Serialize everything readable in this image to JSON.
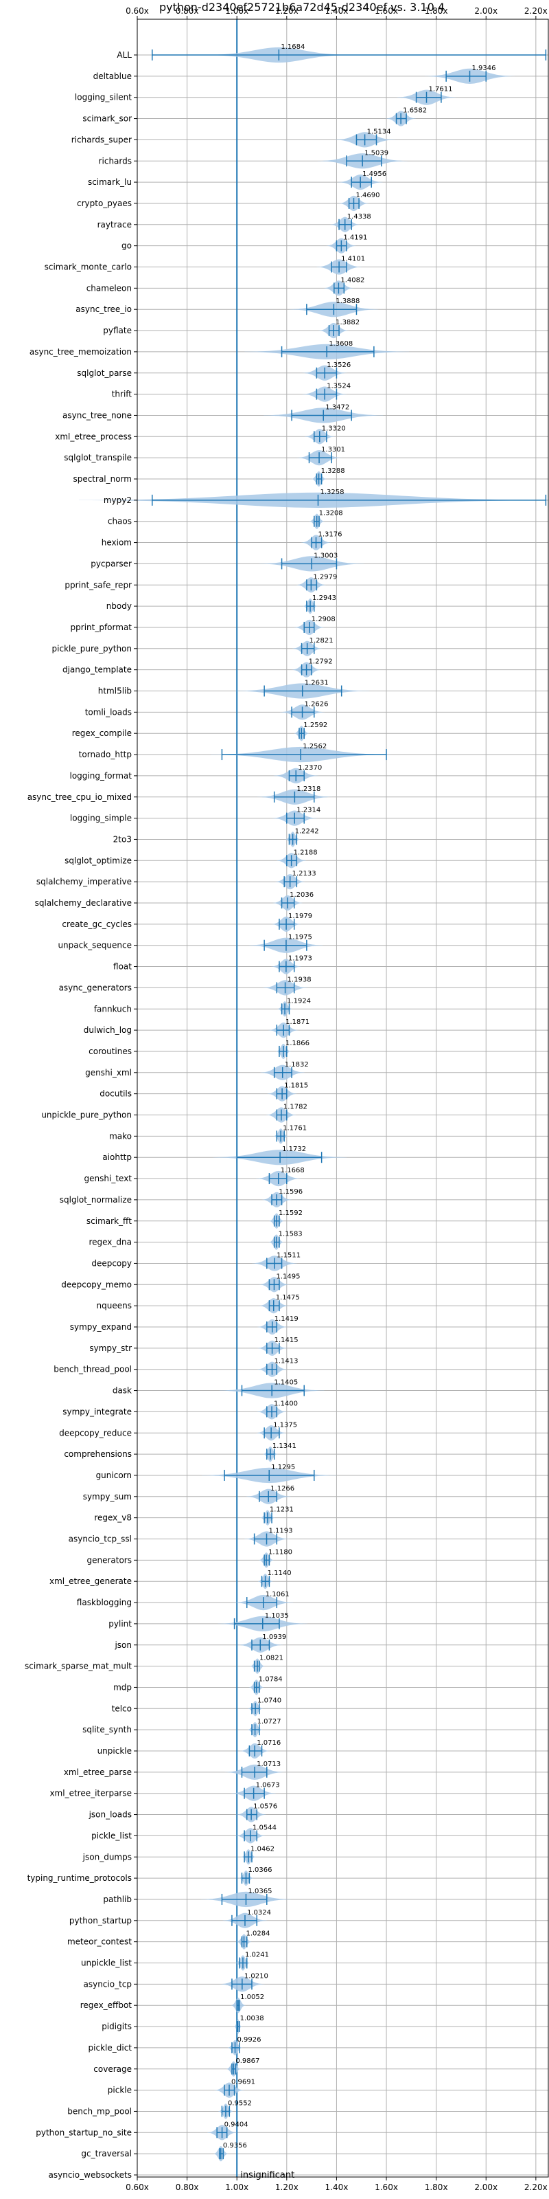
{
  "chart_data": {
    "type": "violin",
    "title": "python-d2340ef25721b6a72d45-d2340ef vs. 3.10.4",
    "xlabel": "",
    "ylabel": "",
    "xlim": [
      0.6,
      2.25
    ],
    "xticks": [
      "0.60x",
      "0.80x",
      "1.00x",
      "1.20x",
      "1.40x",
      "1.60x",
      "1.80x",
      "2.00x",
      "2.20x"
    ],
    "xtick_values": [
      0.6,
      0.8,
      1.0,
      1.2,
      1.4,
      1.6,
      1.8,
      2.0,
      2.2
    ],
    "grid": true,
    "reference_line": 1.0,
    "colors": {
      "violin": "#a7c8e6",
      "line": "#1f77b4",
      "grid": "#b0b0b0"
    },
    "annotation": "insignificant",
    "benchmarks": [
      {
        "name": "ALL",
        "value": 1.1684,
        "label": "1.1684",
        "lo": 0.66,
        "hi": 2.24,
        "spread": 0.1
      },
      {
        "name": "deltablue",
        "value": 1.9346,
        "label": "1.9346",
        "lo": 1.84,
        "hi": 2.0,
        "spread": 0.06
      },
      {
        "name": "logging_silent",
        "value": 1.7611,
        "label": "1.7611",
        "lo": 1.72,
        "hi": 1.82,
        "spread": 0.04
      },
      {
        "name": "scimark_sor",
        "value": 1.6582,
        "label": "1.6582",
        "lo": 1.64,
        "hi": 1.68,
        "spread": 0.02
      },
      {
        "name": "richards_super",
        "value": 1.5134,
        "label": "1.5134",
        "lo": 1.48,
        "hi": 1.56,
        "spread": 0.04
      },
      {
        "name": "richards",
        "value": 1.5039,
        "label": "1.5039",
        "lo": 1.44,
        "hi": 1.58,
        "spread": 0.06
      },
      {
        "name": "scimark_lu",
        "value": 1.4956,
        "label": "1.4956",
        "lo": 1.46,
        "hi": 1.54,
        "spread": 0.03
      },
      {
        "name": "crypto_pyaes",
        "value": 1.469,
        "label": "1.4690",
        "lo": 1.45,
        "hi": 1.49,
        "spread": 0.02
      },
      {
        "name": "raytrace",
        "value": 1.4338,
        "label": "1.4338",
        "lo": 1.41,
        "hi": 1.46,
        "spread": 0.02
      },
      {
        "name": "go",
        "value": 1.4191,
        "label": "1.4191",
        "lo": 1.4,
        "hi": 1.44,
        "spread": 0.02
      },
      {
        "name": "scimark_monte_carlo",
        "value": 1.4101,
        "label": "1.4101",
        "lo": 1.38,
        "hi": 1.44,
        "spread": 0.03
      },
      {
        "name": "chameleon",
        "value": 1.4082,
        "label": "1.4082",
        "lo": 1.39,
        "hi": 1.43,
        "spread": 0.02
      },
      {
        "name": "async_tree_io",
        "value": 1.3888,
        "label": "1.3888",
        "lo": 1.28,
        "hi": 1.48,
        "spread": 0.06
      },
      {
        "name": "pyflate",
        "value": 1.3882,
        "label": "1.3882",
        "lo": 1.37,
        "hi": 1.41,
        "spread": 0.02
      },
      {
        "name": "async_tree_memoization",
        "value": 1.3608,
        "label": "1.3608",
        "lo": 1.18,
        "hi": 1.55,
        "spread": 0.11
      },
      {
        "name": "sqlglot_parse",
        "value": 1.3526,
        "label": "1.3526",
        "lo": 1.32,
        "hi": 1.4,
        "spread": 0.03
      },
      {
        "name": "thrift",
        "value": 1.3524,
        "label": "1.3524",
        "lo": 1.32,
        "hi": 1.4,
        "spread": 0.03
      },
      {
        "name": "async_tree_none",
        "value": 1.3472,
        "label": "1.3472",
        "lo": 1.22,
        "hi": 1.46,
        "spread": 0.08
      },
      {
        "name": "xml_etree_process",
        "value": 1.332,
        "label": "1.3320",
        "lo": 1.31,
        "hi": 1.36,
        "spread": 0.02
      },
      {
        "name": "sqlglot_transpile",
        "value": 1.3301,
        "label": "1.3301",
        "lo": 1.29,
        "hi": 1.38,
        "spread": 0.03
      },
      {
        "name": "spectral_norm",
        "value": 1.3288,
        "label": "1.3288",
        "lo": 1.32,
        "hi": 1.34,
        "spread": 0.01
      },
      {
        "name": "mypy2",
        "value": 1.3258,
        "label": "1.3258",
        "lo": 0.66,
        "hi": 2.24,
        "spread": 0.32
      },
      {
        "name": "chaos",
        "value": 1.3208,
        "label": "1.3208",
        "lo": 1.31,
        "hi": 1.33,
        "spread": 0.01
      },
      {
        "name": "hexiom",
        "value": 1.3176,
        "label": "1.3176",
        "lo": 1.3,
        "hi": 1.34,
        "spread": 0.02
      },
      {
        "name": "pycparser",
        "value": 1.3003,
        "label": "1.3003",
        "lo": 1.18,
        "hi": 1.4,
        "spread": 0.07
      },
      {
        "name": "pprint_safe_repr",
        "value": 1.2979,
        "label": "1.2979",
        "lo": 1.28,
        "hi": 1.32,
        "spread": 0.02
      },
      {
        "name": "nbody",
        "value": 1.2943,
        "label": "1.2943",
        "lo": 1.28,
        "hi": 1.31,
        "spread": 0.01
      },
      {
        "name": "pprint_pformat",
        "value": 1.2908,
        "label": "1.2908",
        "lo": 1.27,
        "hi": 1.31,
        "spread": 0.02
      },
      {
        "name": "pickle_pure_python",
        "value": 1.2821,
        "label": "1.2821",
        "lo": 1.26,
        "hi": 1.31,
        "spread": 0.02
      },
      {
        "name": "django_template",
        "value": 1.2792,
        "label": "1.2792",
        "lo": 1.26,
        "hi": 1.3,
        "spread": 0.02
      },
      {
        "name": "html5lib",
        "value": 1.2631,
        "label": "1.2631",
        "lo": 1.11,
        "hi": 1.42,
        "spread": 0.09
      },
      {
        "name": "tomli_loads",
        "value": 1.2626,
        "label": "1.2626",
        "lo": 1.22,
        "hi": 1.31,
        "spread": 0.03
      },
      {
        "name": "regex_compile",
        "value": 1.2592,
        "label": "1.2592",
        "lo": 1.25,
        "hi": 1.27,
        "spread": 0.01
      },
      {
        "name": "tornado_http",
        "value": 1.2562,
        "label": "1.2562",
        "lo": 0.94,
        "hi": 1.6,
        "spread": 0.12
      },
      {
        "name": "logging_format",
        "value": 1.237,
        "label": "1.2370",
        "lo": 1.21,
        "hi": 1.27,
        "spread": 0.03
      },
      {
        "name": "async_tree_cpu_io_mixed",
        "value": 1.2318,
        "label": "1.2318",
        "lo": 1.15,
        "hi": 1.31,
        "spread": 0.05
      },
      {
        "name": "logging_simple",
        "value": 1.2314,
        "label": "1.2314",
        "lo": 1.2,
        "hi": 1.27,
        "spread": 0.03
      },
      {
        "name": "2to3",
        "value": 1.2242,
        "label": "1.2242",
        "lo": 1.21,
        "hi": 1.24,
        "spread": 0.01
      },
      {
        "name": "sqlglot_optimize",
        "value": 1.2188,
        "label": "1.2188",
        "lo": 1.2,
        "hi": 1.24,
        "spread": 0.02
      },
      {
        "name": "sqlalchemy_imperative",
        "value": 1.2133,
        "label": "1.2133",
        "lo": 1.19,
        "hi": 1.24,
        "spread": 0.02
      },
      {
        "name": "sqlalchemy_declarative",
        "value": 1.2036,
        "label": "1.2036",
        "lo": 1.18,
        "hi": 1.23,
        "spread": 0.02
      },
      {
        "name": "create_gc_cycles",
        "value": 1.1979,
        "label": "1.1979",
        "lo": 1.17,
        "hi": 1.23,
        "spread": 0.02
      },
      {
        "name": "unpack_sequence",
        "value": 1.1975,
        "label": "1.1975",
        "lo": 1.11,
        "hi": 1.28,
        "spread": 0.05
      },
      {
        "name": "float",
        "value": 1.1973,
        "label": "1.1973",
        "lo": 1.17,
        "hi": 1.23,
        "spread": 0.02
      },
      {
        "name": "async_generators",
        "value": 1.1938,
        "label": "1.1938",
        "lo": 1.16,
        "hi": 1.23,
        "spread": 0.03
      },
      {
        "name": "fannkuch",
        "value": 1.1924,
        "label": "1.1924",
        "lo": 1.18,
        "hi": 1.21,
        "spread": 0.01
      },
      {
        "name": "dulwich_log",
        "value": 1.1871,
        "label": "1.1871",
        "lo": 1.16,
        "hi": 1.21,
        "spread": 0.02
      },
      {
        "name": "coroutines",
        "value": 1.1866,
        "label": "1.1866",
        "lo": 1.17,
        "hi": 1.2,
        "spread": 0.01
      },
      {
        "name": "genshi_xml",
        "value": 1.1832,
        "label": "1.1832",
        "lo": 1.15,
        "hi": 1.22,
        "spread": 0.03
      },
      {
        "name": "docutils",
        "value": 1.1815,
        "label": "1.1815",
        "lo": 1.16,
        "hi": 1.2,
        "spread": 0.02
      },
      {
        "name": "unpickle_pure_python",
        "value": 1.1782,
        "label": "1.1782",
        "lo": 1.16,
        "hi": 1.2,
        "spread": 0.02
      },
      {
        "name": "mako",
        "value": 1.1761,
        "label": "1.1761",
        "lo": 1.16,
        "hi": 1.19,
        "spread": 0.01
      },
      {
        "name": "aiohttp",
        "value": 1.1732,
        "label": "1.1732",
        "lo": 1.0,
        "hi": 1.34,
        "spread": 0.09
      },
      {
        "name": "genshi_text",
        "value": 1.1668,
        "label": "1.1668",
        "lo": 1.13,
        "hi": 1.2,
        "spread": 0.03
      },
      {
        "name": "sqlglot_normalize",
        "value": 1.1596,
        "label": "1.1596",
        "lo": 1.14,
        "hi": 1.18,
        "spread": 0.02
      },
      {
        "name": "scimark_fft",
        "value": 1.1592,
        "label": "1.1592",
        "lo": 1.15,
        "hi": 1.17,
        "spread": 0.01
      },
      {
        "name": "regex_dna",
        "value": 1.1583,
        "label": "1.1583",
        "lo": 1.15,
        "hi": 1.17,
        "spread": 0.01
      },
      {
        "name": "deepcopy",
        "value": 1.1511,
        "label": "1.1511",
        "lo": 1.12,
        "hi": 1.18,
        "spread": 0.03
      },
      {
        "name": "deepcopy_memo",
        "value": 1.1495,
        "label": "1.1495",
        "lo": 1.13,
        "hi": 1.17,
        "spread": 0.02
      },
      {
        "name": "nqueens",
        "value": 1.1475,
        "label": "1.1475",
        "lo": 1.13,
        "hi": 1.17,
        "spread": 0.02
      },
      {
        "name": "sympy_expand",
        "value": 1.1419,
        "label": "1.1419",
        "lo": 1.12,
        "hi": 1.16,
        "spread": 0.02
      },
      {
        "name": "sympy_str",
        "value": 1.1415,
        "label": "1.1415",
        "lo": 1.12,
        "hi": 1.17,
        "spread": 0.02
      },
      {
        "name": "bench_thread_pool",
        "value": 1.1413,
        "label": "1.1413",
        "lo": 1.12,
        "hi": 1.16,
        "spread": 0.02
      },
      {
        "name": "dask",
        "value": 1.1405,
        "label": "1.1405",
        "lo": 1.02,
        "hi": 1.27,
        "spread": 0.07
      },
      {
        "name": "sympy_integrate",
        "value": 1.14,
        "label": "1.1400",
        "lo": 1.12,
        "hi": 1.16,
        "spread": 0.02
      },
      {
        "name": "deepcopy_reduce",
        "value": 1.1375,
        "label": "1.1375",
        "lo": 1.11,
        "hi": 1.17,
        "spread": 0.02
      },
      {
        "name": "comprehensions",
        "value": 1.1341,
        "label": "1.1341",
        "lo": 1.12,
        "hi": 1.15,
        "spread": 0.01
      },
      {
        "name": "gunicorn",
        "value": 1.1295,
        "label": "1.1295",
        "lo": 0.95,
        "hi": 1.31,
        "spread": 0.09
      },
      {
        "name": "sympy_sum",
        "value": 1.1266,
        "label": "1.1266",
        "lo": 1.09,
        "hi": 1.16,
        "spread": 0.03
      },
      {
        "name": "regex_v8",
        "value": 1.1231,
        "label": "1.1231",
        "lo": 1.11,
        "hi": 1.14,
        "spread": 0.01
      },
      {
        "name": "asyncio_tcp_ssl",
        "value": 1.1193,
        "label": "1.1193",
        "lo": 1.07,
        "hi": 1.16,
        "spread": 0.03
      },
      {
        "name": "generators",
        "value": 1.118,
        "label": "1.1180",
        "lo": 1.11,
        "hi": 1.13,
        "spread": 0.01
      },
      {
        "name": "xml_etree_generate",
        "value": 1.114,
        "label": "1.1140",
        "lo": 1.1,
        "hi": 1.13,
        "spread": 0.01
      },
      {
        "name": "flaskblogging",
        "value": 1.1061,
        "label": "1.1061",
        "lo": 1.04,
        "hi": 1.16,
        "spread": 0.04
      },
      {
        "name": "pylint",
        "value": 1.1035,
        "label": "1.1035",
        "lo": 0.99,
        "hi": 1.17,
        "spread": 0.06
      },
      {
        "name": "json",
        "value": 1.0939,
        "label": "1.0939",
        "lo": 1.06,
        "hi": 1.13,
        "spread": 0.03
      },
      {
        "name": "scimark_sparse_mat_mult",
        "value": 1.0821,
        "label": "1.0821",
        "lo": 1.07,
        "hi": 1.09,
        "spread": 0.01
      },
      {
        "name": "mdp",
        "value": 1.0784,
        "label": "1.0784",
        "lo": 1.07,
        "hi": 1.09,
        "spread": 0.01
      },
      {
        "name": "telco",
        "value": 1.074,
        "label": "1.0740",
        "lo": 1.06,
        "hi": 1.09,
        "spread": 0.01
      },
      {
        "name": "sqlite_synth",
        "value": 1.0727,
        "label": "1.0727",
        "lo": 1.06,
        "hi": 1.09,
        "spread": 0.01
      },
      {
        "name": "unpickle",
        "value": 1.0716,
        "label": "1.0716",
        "lo": 1.05,
        "hi": 1.1,
        "spread": 0.02
      },
      {
        "name": "xml_etree_parse",
        "value": 1.0713,
        "label": "1.0713",
        "lo": 1.02,
        "hi": 1.12,
        "spread": 0.04
      },
      {
        "name": "xml_etree_iterparse",
        "value": 1.0673,
        "label": "1.0673",
        "lo": 1.03,
        "hi": 1.11,
        "spread": 0.03
      },
      {
        "name": "json_loads",
        "value": 1.0576,
        "label": "1.0576",
        "lo": 1.04,
        "hi": 1.08,
        "spread": 0.02
      },
      {
        "name": "pickle_list",
        "value": 1.0544,
        "label": "1.0544",
        "lo": 1.03,
        "hi": 1.08,
        "spread": 0.02
      },
      {
        "name": "json_dumps",
        "value": 1.0462,
        "label": "1.0462",
        "lo": 1.03,
        "hi": 1.06,
        "spread": 0.01
      },
      {
        "name": "typing_runtime_protocols",
        "value": 1.0366,
        "label": "1.0366",
        "lo": 1.02,
        "hi": 1.05,
        "spread": 0.01
      },
      {
        "name": "pathlib",
        "value": 1.0365,
        "label": "1.0365",
        "lo": 0.94,
        "hi": 1.12,
        "spread": 0.06
      },
      {
        "name": "python_startup",
        "value": 1.0324,
        "label": "1.0324",
        "lo": 0.98,
        "hi": 1.08,
        "spread": 0.03
      },
      {
        "name": "meteor_contest",
        "value": 1.0284,
        "label": "1.0284",
        "lo": 1.02,
        "hi": 1.04,
        "spread": 0.01
      },
      {
        "name": "unpickle_list",
        "value": 1.0241,
        "label": "1.0241",
        "lo": 1.01,
        "hi": 1.04,
        "spread": 0.01
      },
      {
        "name": "asyncio_tcp",
        "value": 1.021,
        "label": "1.0210",
        "lo": 0.98,
        "hi": 1.06,
        "spread": 0.03
      },
      {
        "name": "regex_effbot",
        "value": 1.0052,
        "label": "1.0052",
        "lo": 1.0,
        "hi": 1.01,
        "spread": 0.01
      },
      {
        "name": "pidigits",
        "value": 1.0038,
        "label": "1.0038",
        "lo": 1.0,
        "hi": 1.01,
        "spread": 0.005
      },
      {
        "name": "pickle_dict",
        "value": 0.9926,
        "label": "0.9926",
        "lo": 0.98,
        "hi": 1.01,
        "spread": 0.01
      },
      {
        "name": "coverage",
        "value": 0.9867,
        "label": "0.9867",
        "lo": 0.98,
        "hi": 0.995,
        "spread": 0.01
      },
      {
        "name": "pickle",
        "value": 0.9691,
        "label": "0.9691",
        "lo": 0.95,
        "hi": 0.99,
        "spread": 0.02
      },
      {
        "name": "bench_mp_pool",
        "value": 0.9552,
        "label": "0.9552",
        "lo": 0.94,
        "hi": 0.97,
        "spread": 0.01
      },
      {
        "name": "python_startup_no_site",
        "value": 0.9404,
        "label": "0.9404",
        "lo": 0.92,
        "hi": 0.96,
        "spread": 0.02
      },
      {
        "name": "gc_traversal",
        "value": 0.9356,
        "label": "0.9356",
        "lo": 0.93,
        "hi": 0.945,
        "spread": 0.01
      },
      {
        "name": "asyncio_websockets",
        "value": null,
        "label": "",
        "lo": null,
        "hi": null,
        "spread": 0,
        "note": "insignificant"
      }
    ]
  }
}
